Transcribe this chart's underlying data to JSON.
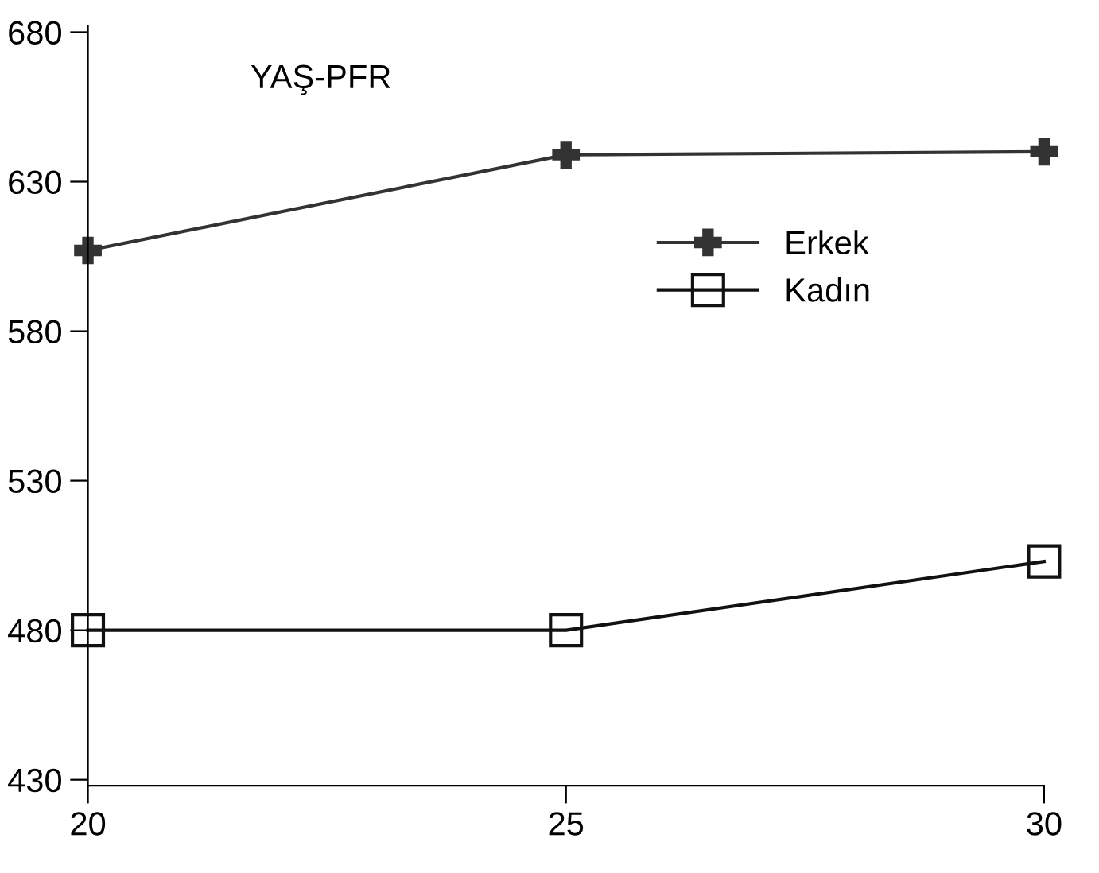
{
  "chart_data": {
    "type": "line",
    "title": "YAŞ-PFR",
    "x": [
      20,
      25,
      30
    ],
    "series": [
      {
        "name": "Erkek",
        "color": "#333333",
        "values": [
          607,
          639,
          640
        ],
        "marker": "cross"
      },
      {
        "name": "Kadın",
        "color": "#111111",
        "values": [
          480,
          480,
          503
        ],
        "marker": "square"
      }
    ],
    "xlim": [
      20,
      30
    ],
    "xticks": [
      20,
      25,
      30
    ],
    "ylim": [
      428,
      682
    ],
    "yticks": [
      430,
      480,
      530,
      580,
      630,
      680
    ],
    "grid": false,
    "legend": "center right",
    "line_style": "solid"
  }
}
